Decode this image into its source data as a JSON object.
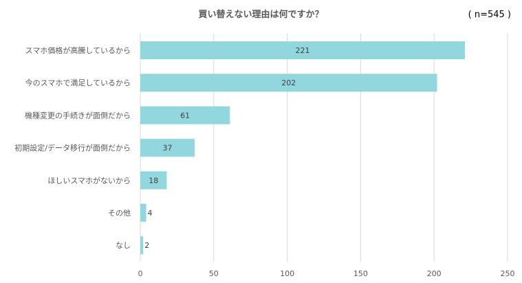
{
  "chart_data": {
    "type": "bar",
    "orientation": "horizontal",
    "title": "買い替えない理由は何ですか？",
    "sample_size": "( n=545 )",
    "categories": [
      "スマホ価格が高騰しているから",
      "今のスマホで満足しているから",
      "機種変更の手続きが面倒だから",
      "初期設定/データ移行が面倒だから",
      "ほしいスマホがないから",
      "その他",
      "なし"
    ],
    "values": [
      221,
      202,
      61,
      37,
      18,
      4,
      2
    ],
    "xlim": [
      0,
      250
    ],
    "xticks": [
      0,
      50,
      100,
      150,
      200,
      250
    ],
    "grid": "vertical",
    "legend": "none",
    "colors": {
      "bar": "#92d7de",
      "grid": "#d9d9d9",
      "label": "#595959",
      "value_label": "#404040"
    }
  }
}
